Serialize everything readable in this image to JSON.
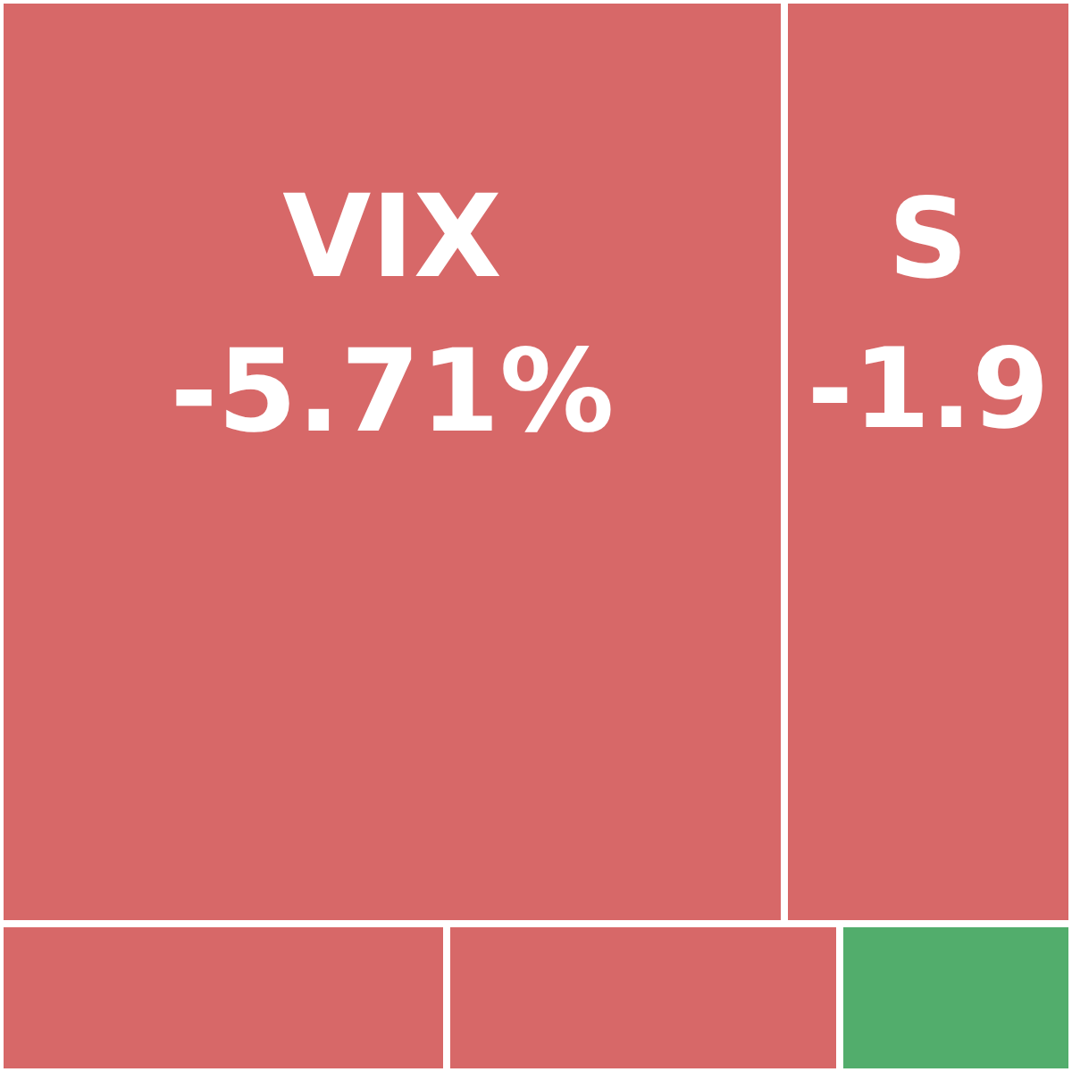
{
  "chart_data": {
    "type": "other",
    "categories": [
      "VIX",
      "S",
      null,
      null,
      null
    ],
    "values": [
      -5.71,
      -1.9,
      null,
      null,
      null
    ],
    "value_labels": [
      "-5.71%",
      "-1.9",
      null,
      null,
      null
    ],
    "colors": [
      "#d76868",
      "#d76868",
      "#d76868",
      "#d76868",
      "#52ad6c"
    ]
  }
}
